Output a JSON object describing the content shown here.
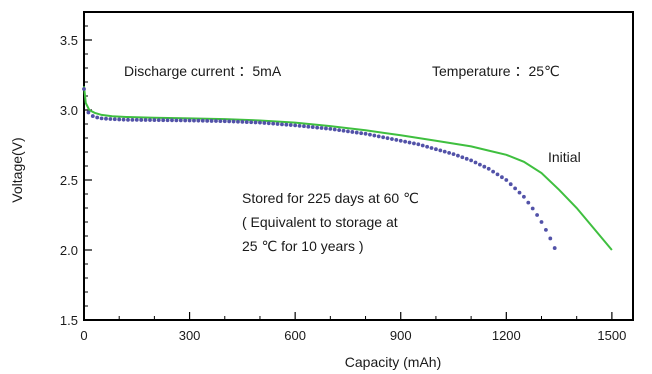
{
  "chart_data": {
    "type": "line",
    "title": "",
    "xlabel": "Capacity (mAh)",
    "ylabel": "Voltage(V)",
    "xlim": [
      0,
      1560
    ],
    "ylim": [
      1.5,
      3.7
    ],
    "xticks": [
      0,
      300,
      600,
      900,
      1200,
      1500
    ],
    "xtick_labels": [
      "0",
      "300",
      "600",
      "900",
      "1200",
      "1500"
    ],
    "yticks": [
      1.5,
      2.0,
      2.5,
      3.0,
      3.5
    ],
    "ytick_labels": [
      "1.5",
      "2.0",
      "2.5",
      "3.0",
      "3.5"
    ],
    "grid": false,
    "annotations": {
      "discharge": "Discharge current ：5mA",
      "temperature": "Temperature ：25℃",
      "initial": "Initial",
      "stored_line1": "Stored for 225 days at 60 ℃",
      "stored_line2": "( Equivalent to storage at",
      "stored_line3": "25 ℃ for 10 years )"
    },
    "series": [
      {
        "name": "Initial",
        "style": "solid",
        "color": "#3fbf3f",
        "x": [
          0,
          5,
          15,
          30,
          50,
          80,
          120,
          200,
          300,
          400,
          500,
          600,
          700,
          800,
          900,
          1000,
          1100,
          1150,
          1200,
          1250,
          1300,
          1350,
          1400,
          1450,
          1500
        ],
        "y": [
          3.17,
          3.05,
          3.0,
          2.98,
          2.965,
          2.955,
          2.95,
          2.945,
          2.94,
          2.935,
          2.925,
          2.91,
          2.885,
          2.855,
          2.82,
          2.78,
          2.74,
          2.71,
          2.68,
          2.63,
          2.55,
          2.43,
          2.3,
          2.15,
          2.0
        ]
      },
      {
        "name": "Stored for 225 days at 60 ℃",
        "style": "dotted",
        "color": "#5252a8",
        "x": [
          0,
          5,
          15,
          30,
          50,
          80,
          120,
          200,
          300,
          400,
          500,
          600,
          700,
          800,
          900,
          950,
          1000,
          1050,
          1100,
          1150,
          1200,
          1250,
          1280,
          1300,
          1320,
          1340
        ],
        "y": [
          3.15,
          3.02,
          2.97,
          2.95,
          2.94,
          2.935,
          2.93,
          2.928,
          2.925,
          2.92,
          2.91,
          2.89,
          2.865,
          2.83,
          2.78,
          2.755,
          2.72,
          2.685,
          2.64,
          2.58,
          2.5,
          2.38,
          2.28,
          2.2,
          2.11,
          2.0
        ]
      }
    ]
  }
}
